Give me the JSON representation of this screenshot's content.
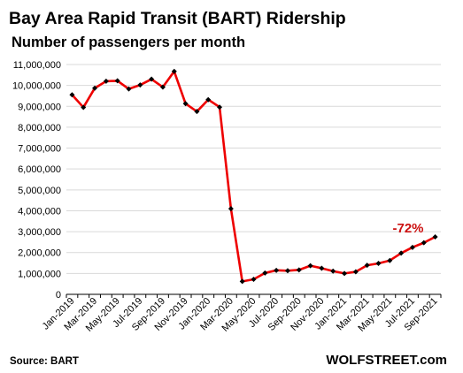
{
  "chart_data": {
    "type": "line",
    "title": "Bay Area Rapid Transit (BART) Ridership",
    "subtitle": "Number of passengers per month",
    "xlabel": "",
    "ylabel": "",
    "ylim": [
      0,
      11000000
    ],
    "ytick_labels": [
      "0",
      "1,000,000",
      "2,000,000",
      "3,000,000",
      "4,000,000",
      "5,000,000",
      "6,000,000",
      "7,000,000",
      "8,000,000",
      "9,000,000",
      "10,000,000",
      "11,000,000"
    ],
    "x": [
      "Jan-2019",
      "Feb-2019",
      "Mar-2019",
      "Apr-2019",
      "May-2019",
      "Jun-2019",
      "Jul-2019",
      "Aug-2019",
      "Sep-2019",
      "Oct-2019",
      "Nov-2019",
      "Dec-2019",
      "Jan-2020",
      "Feb-2020",
      "Mar-2020",
      "Apr-2020",
      "May-2020",
      "Jun-2020",
      "Jul-2020",
      "Aug-2020",
      "Sep-2020",
      "Oct-2020",
      "Nov-2020",
      "Dec-2020",
      "Jan-2021",
      "Feb-2021",
      "Mar-2021",
      "Apr-2021",
      "May-2021",
      "Jun-2021",
      "Jul-2021",
      "Aug-2021",
      "Sep-2021"
    ],
    "xtick_labels": [
      "Jan-2019",
      "Mar-2019",
      "May-2019",
      "Jul-2019",
      "Sep-2019",
      "Nov-2019",
      "Jan-2020",
      "Mar-2020",
      "May-2020",
      "Jul-2020",
      "Sep-2020",
      "Nov-2020",
      "Jan-2021",
      "Mar-2021",
      "May-2021",
      "Jul-2021",
      "Sep-2021"
    ],
    "series": [
      {
        "values": [
          9550000,
          8950000,
          9870000,
          10200000,
          10220000,
          9830000,
          10020000,
          10300000,
          9920000,
          10670000,
          9130000,
          8750000,
          9320000,
          8960000,
          4100000,
          620000,
          720000,
          1020000,
          1150000,
          1130000,
          1170000,
          1370000,
          1250000,
          1110000,
          1000000,
          1080000,
          1390000,
          1480000,
          1620000,
          1970000,
          2250000,
          2470000,
          2750000
        ]
      }
    ],
    "grid": true,
    "legend": "none",
    "annotation": "-72%",
    "source": "Source: BART",
    "brand": "WOLFSTREET.com",
    "colors": {
      "line": "#ee0000",
      "marker": "#000000",
      "annotation": "#cc1111",
      "grid": "#d9d9d9"
    }
  }
}
